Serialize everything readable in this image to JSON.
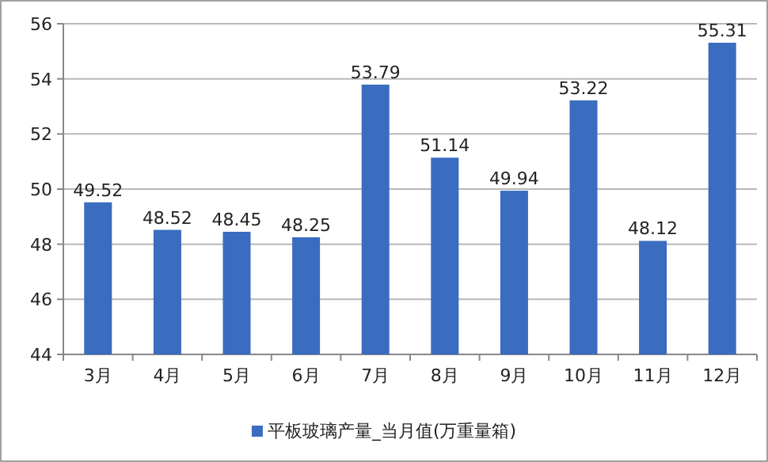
{
  "chart_data": {
    "type": "bar",
    "categories": [
      "3月",
      "4月",
      "5月",
      "6月",
      "7月",
      "8月",
      "9月",
      "10月",
      "11月",
      "12月"
    ],
    "series": [
      {
        "name": "平板玻璃产量_当月值(万重量箱)",
        "color": "#3a6cc0",
        "values": [
          49.52,
          48.52,
          48.45,
          48.25,
          53.79,
          51.14,
          49.94,
          53.22,
          48.12,
          55.31
        ]
      }
    ],
    "ylim": [
      44,
      56
    ],
    "yticks": [
      44,
      46,
      48,
      50,
      52,
      54,
      56
    ],
    "grid": "y",
    "legend": "bottom",
    "data_labels": true
  }
}
